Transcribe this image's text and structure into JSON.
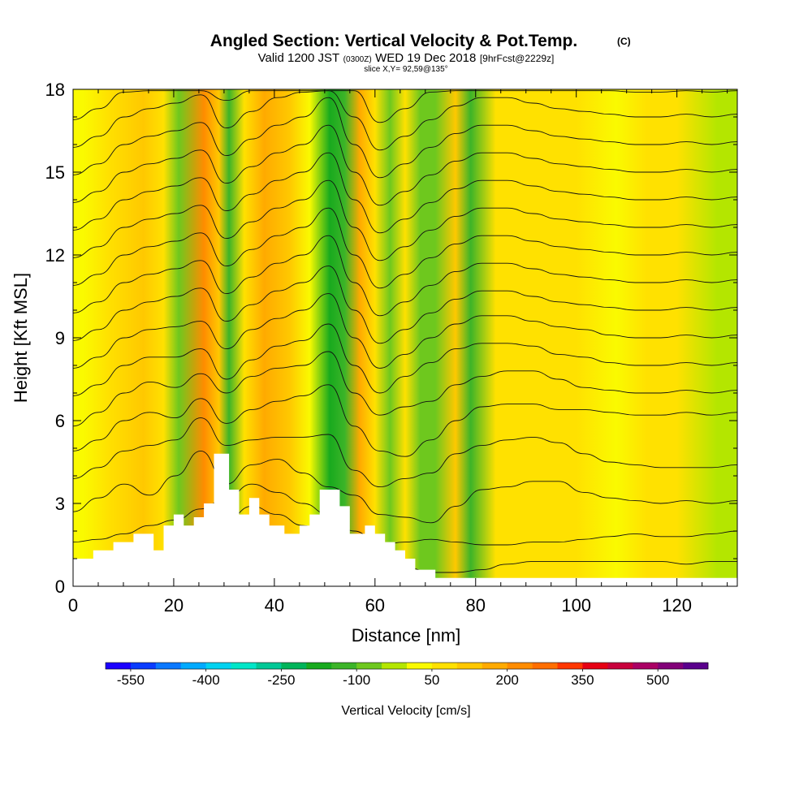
{
  "chart_data": {
    "type": "heatmap",
    "title": "Angled Section: Vertical Velocity & Pot.Temp.",
    "title_unit": "(C)",
    "subtitle": {
      "prefix": "Valid 1200 JST",
      "utc": "(0300Z)",
      "date": "WED 19 Dec 2018",
      "forecast": "[9hrFcst@2229z]"
    },
    "slice_label": "slice X,Y= 92,59@135°",
    "xlabel": "Distance [nm]",
    "ylabel": "Height [Kft MSL]",
    "xlim": [
      0,
      132
    ],
    "ylim": [
      0,
      18
    ],
    "x_ticks": [
      0,
      20,
      40,
      60,
      80,
      100,
      120
    ],
    "y_ticks": [
      0,
      3,
      6,
      9,
      12,
      15,
      18
    ],
    "colorbar": {
      "label": "Vertical Velocity [cm/s]",
      "tick_labels": [
        "-550",
        "-400",
        "-250",
        "-100",
        "50",
        "200",
        "350",
        "500"
      ],
      "colors": [
        "#1c00ff",
        "#0a3cff",
        "#0a78ff",
        "#00aaff",
        "#00d2f0",
        "#00e6c8",
        "#00c896",
        "#00b45a",
        "#18aa1e",
        "#3cb428",
        "#6ec81e",
        "#b4e600",
        "#fafa00",
        "#ffe100",
        "#ffc800",
        "#ffaa00",
        "#ff8c00",
        "#ff6e00",
        "#ff3700",
        "#e60014",
        "#c8003c",
        "#aa0064",
        "#820078",
        "#5a008c"
      ]
    },
    "velocity_field": [
      {
        "x": 2,
        "value": 0
      },
      {
        "x": 7,
        "value": 50
      },
      {
        "x": 14,
        "value": 110
      },
      {
        "x": 18,
        "value": 70
      },
      {
        "x": 21,
        "value": -70
      },
      {
        "x": 26,
        "value": 220
      },
      {
        "x": 29,
        "value": 120
      },
      {
        "x": 31,
        "value": -110
      },
      {
        "x": 34,
        "value": 80
      },
      {
        "x": 38,
        "value": 160
      },
      {
        "x": 43,
        "value": 120
      },
      {
        "x": 47,
        "value": 0
      },
      {
        "x": 51,
        "value": -190
      },
      {
        "x": 54,
        "value": -130
      },
      {
        "x": 57,
        "value": 150
      },
      {
        "x": 60,
        "value": 90
      },
      {
        "x": 63,
        "value": -60
      },
      {
        "x": 66,
        "value": 70
      },
      {
        "x": 69,
        "value": -90
      },
      {
        "x": 72,
        "value": -60
      },
      {
        "x": 76,
        "value": 110
      },
      {
        "x": 79,
        "value": -140
      },
      {
        "x": 84,
        "value": 50
      },
      {
        "x": 92,
        "value": 60
      },
      {
        "x": 100,
        "value": 50
      },
      {
        "x": 108,
        "value": 40
      },
      {
        "x": 114,
        "value": 60
      },
      {
        "x": 120,
        "value": 50
      },
      {
        "x": 128,
        "value": -10
      }
    ],
    "terrain": [
      [
        0,
        1.0
      ],
      [
        4,
        1.0
      ],
      [
        4,
        1.3
      ],
      [
        8,
        1.3
      ],
      [
        8,
        1.6
      ],
      [
        12,
        1.6
      ],
      [
        12,
        1.9
      ],
      [
        16,
        1.9
      ],
      [
        16,
        1.3
      ],
      [
        18,
        1.3
      ],
      [
        18,
        2.2
      ],
      [
        20,
        2.2
      ],
      [
        20,
        2.6
      ],
      [
        22,
        2.6
      ],
      [
        22,
        2.2
      ],
      [
        24,
        2.2
      ],
      [
        24,
        2.5
      ],
      [
        26,
        2.5
      ],
      [
        26,
        3.0
      ],
      [
        28,
        3.0
      ],
      [
        28,
        4.8
      ],
      [
        31,
        4.8
      ],
      [
        31,
        3.5
      ],
      [
        33,
        3.5
      ],
      [
        33,
        2.6
      ],
      [
        35,
        2.6
      ],
      [
        35,
        3.2
      ],
      [
        37,
        3.2
      ],
      [
        37,
        2.6
      ],
      [
        39,
        2.6
      ],
      [
        39,
        2.2
      ],
      [
        42,
        2.2
      ],
      [
        42,
        1.9
      ],
      [
        45,
        1.9
      ],
      [
        45,
        2.2
      ],
      [
        47,
        2.2
      ],
      [
        47,
        2.6
      ],
      [
        49,
        2.6
      ],
      [
        49,
        3.5
      ],
      [
        53,
        3.5
      ],
      [
        53,
        2.9
      ],
      [
        55,
        2.9
      ],
      [
        55,
        1.9
      ],
      [
        58,
        1.9
      ],
      [
        58,
        2.2
      ],
      [
        60,
        2.2
      ],
      [
        60,
        1.9
      ],
      [
        62,
        1.9
      ],
      [
        62,
        1.6
      ],
      [
        64,
        1.6
      ],
      [
        64,
        1.3
      ],
      [
        66,
        1.3
      ],
      [
        66,
        1.0
      ],
      [
        68,
        1.0
      ],
      [
        68,
        0.6
      ],
      [
        72,
        0.6
      ],
      [
        72,
        0.3
      ],
      [
        132,
        0.3
      ]
    ],
    "theta_contours": [
      {
        "theta": 6,
        "y": [
          0.9,
          0.9,
          1.0,
          1.1,
          1.3,
          1.8,
          2.4,
          2.9,
          2.6,
          2.2,
          1.9,
          1.4,
          0.9,
          0.7,
          0.5,
          0.5,
          0.6,
          0.8,
          0.9,
          0.9,
          0.9,
          0.9,
          0.9,
          0.9,
          0.8,
          0.9,
          0.9
        ]
      },
      {
        "theta": 8,
        "y": [
          1.6,
          1.7,
          1.9,
          2.2,
          2.4,
          2.8,
          3.2,
          3.7,
          3.4,
          3.0,
          2.6,
          2.0,
          1.5,
          1.6,
          1.7,
          1.6,
          1.5,
          1.5,
          1.6,
          1.6,
          1.7,
          1.8,
          1.9,
          1.8,
          1.8,
          1.9,
          2.0
        ]
      },
      {
        "theta": 10,
        "y": [
          2.7,
          3.2,
          3.7,
          3.3,
          4.0,
          4.9,
          3.7,
          4.4,
          4.6,
          4.1,
          3.6,
          3.3,
          2.6,
          2.5,
          2.3,
          2.9,
          3.5,
          3.6,
          3.8,
          3.8,
          3.4,
          3.2,
          3.1,
          3.0,
          3.1,
          3.0,
          3.1
        ]
      },
      {
        "theta": 12,
        "y": [
          3.9,
          4.3,
          4.9,
          5.1,
          5.3,
          6.1,
          5.1,
          5.3,
          5.4,
          5.4,
          5.5,
          4.2,
          3.6,
          3.9,
          4.1,
          4.8,
          5.1,
          5.3,
          5.4,
          5.2,
          4.8,
          4.5,
          4.4,
          4.3,
          4.3,
          4.3,
          4.4
        ]
      },
      {
        "theta": 14,
        "y": [
          4.9,
          5.3,
          6.0,
          6.3,
          6.1,
          6.8,
          5.9,
          6.4,
          6.7,
          6.9,
          7.3,
          5.8,
          4.9,
          4.7,
          5.3,
          6.0,
          6.5,
          6.6,
          6.6,
          6.4,
          6.4,
          6.3,
          6.2,
          6.2,
          6.3,
          6.2,
          6.3
        ]
      },
      {
        "theta": 16,
        "y": [
          5.8,
          6.3,
          7.0,
          7.4,
          7.2,
          7.7,
          7.0,
          7.6,
          7.9,
          8.0,
          8.5,
          7.0,
          6.2,
          6.5,
          6.7,
          7.3,
          7.6,
          7.8,
          7.8,
          7.5,
          7.2,
          7.1,
          7.0,
          7.0,
          7.1,
          7.0,
          7.1
        ]
      },
      {
        "theta": 18,
        "y": [
          6.9,
          7.3,
          8.0,
          8.3,
          8.3,
          8.6,
          7.5,
          8.2,
          8.7,
          8.9,
          9.5,
          8.0,
          7.0,
          7.6,
          8.1,
          8.6,
          8.8,
          8.8,
          8.7,
          8.4,
          8.3,
          8.1,
          8.0,
          8.0,
          8.1,
          8.0,
          8.1
        ]
      },
      {
        "theta": 20,
        "y": [
          7.9,
          8.3,
          9.0,
          9.3,
          9.4,
          9.6,
          8.6,
          9.3,
          9.7,
          10.0,
          10.6,
          9.0,
          7.9,
          8.4,
          9.0,
          9.5,
          9.8,
          9.8,
          9.6,
          9.4,
          9.3,
          9.1,
          9.0,
          9.0,
          9.1,
          9.0,
          9.1
        ]
      },
      {
        "theta": 22,
        "y": [
          8.9,
          9.3,
          10.0,
          10.3,
          10.5,
          10.8,
          9.6,
          10.2,
          10.7,
          11.0,
          11.6,
          10.0,
          8.8,
          9.3,
          9.9,
          10.4,
          10.7,
          10.7,
          10.5,
          10.3,
          10.2,
          10.1,
          10.0,
          10.0,
          10.1,
          10.0,
          10.1
        ]
      },
      {
        "theta": 24,
        "y": [
          9.9,
          10.3,
          11.0,
          11.3,
          11.5,
          11.8,
          10.6,
          11.2,
          11.7,
          12.0,
          12.7,
          11.0,
          9.8,
          10.3,
          10.9,
          11.4,
          11.7,
          11.7,
          11.5,
          11.3,
          11.2,
          11.1,
          11.0,
          11.0,
          11.1,
          11.0,
          11.1
        ]
      },
      {
        "theta": 26,
        "y": [
          10.9,
          11.3,
          12.0,
          12.3,
          12.5,
          12.8,
          11.6,
          12.2,
          12.7,
          13.0,
          13.7,
          12.0,
          10.8,
          11.3,
          11.9,
          12.4,
          12.7,
          12.7,
          12.5,
          12.3,
          12.2,
          12.1,
          12.0,
          12.0,
          12.1,
          12.0,
          12.1
        ]
      },
      {
        "theta": 28,
        "y": [
          11.9,
          12.3,
          13.0,
          13.3,
          13.5,
          13.8,
          12.6,
          13.2,
          13.7,
          14.0,
          14.7,
          13.0,
          11.8,
          12.3,
          12.9,
          13.4,
          13.7,
          13.7,
          13.5,
          13.3,
          13.2,
          13.1,
          13.0,
          13.0,
          13.1,
          13.0,
          13.1
        ]
      },
      {
        "theta": 30,
        "y": [
          12.9,
          13.3,
          14.0,
          14.3,
          14.5,
          14.8,
          13.6,
          14.2,
          14.7,
          15.0,
          15.7,
          14.0,
          12.8,
          13.3,
          13.9,
          14.4,
          14.7,
          14.7,
          14.5,
          14.3,
          14.2,
          14.1,
          14.0,
          14.0,
          14.1,
          14.0,
          14.1
        ]
      },
      {
        "theta": 32,
        "y": [
          13.9,
          14.3,
          15.0,
          15.3,
          15.5,
          15.8,
          14.6,
          15.2,
          15.7,
          16.0,
          16.7,
          15.0,
          13.8,
          14.3,
          14.9,
          15.4,
          15.7,
          15.7,
          15.5,
          15.3,
          15.2,
          15.1,
          15.0,
          15.0,
          15.1,
          15.0,
          15.1
        ]
      },
      {
        "theta": 34,
        "y": [
          14.9,
          15.3,
          16.0,
          16.3,
          16.5,
          16.8,
          15.6,
          16.2,
          16.7,
          17.0,
          17.7,
          16.0,
          14.8,
          15.3,
          15.9,
          16.4,
          16.7,
          16.7,
          16.5,
          16.3,
          16.2,
          16.1,
          16.0,
          16.0,
          16.1,
          16.0,
          16.1
        ]
      },
      {
        "theta": 36,
        "y": [
          15.9,
          16.3,
          17.0,
          17.3,
          17.5,
          17.8,
          16.6,
          17.2,
          17.7,
          17.9,
          17.95,
          17.0,
          15.8,
          16.3,
          16.9,
          17.4,
          17.7,
          17.7,
          17.5,
          17.3,
          17.2,
          17.1,
          17.0,
          17.0,
          17.1,
          17.0,
          17.1
        ]
      },
      {
        "theta": 38,
        "y": [
          16.9,
          17.3,
          17.9,
          17.95,
          17.95,
          17.95,
          17.6,
          17.95,
          17.95,
          17.95,
          17.95,
          17.95,
          16.8,
          17.3,
          17.9,
          17.95,
          17.95,
          17.95,
          17.95,
          17.95,
          17.95,
          17.95,
          17.9,
          17.9,
          17.95,
          17.9,
          17.95
        ]
      }
    ]
  }
}
